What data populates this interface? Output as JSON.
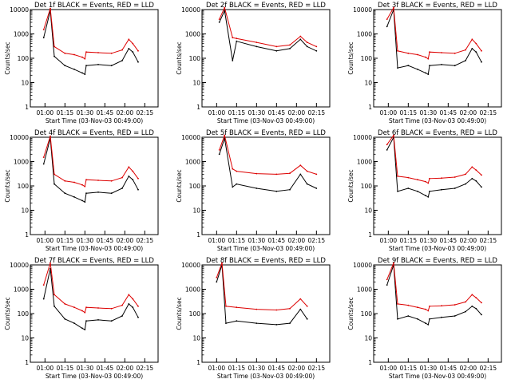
{
  "common": {
    "xlabel": "Start Time (03-Nov-03 00:49:00)",
    "ylabel": "Counts/sec",
    "x_ticks": [
      "01:00",
      "01:15",
      "01:30",
      "01:45",
      "02:00",
      "02:15"
    ],
    "y_ticks": [
      "1",
      "10",
      "100",
      "1000",
      "10000"
    ],
    "ylim": [
      1,
      10000
    ],
    "y_scale": "log",
    "events_color": "#000000",
    "lld_color": "#dd0000"
  },
  "chart_data": [
    {
      "type": "line",
      "title": "Det 1f BLACK = Events, RED = LLD",
      "series": [
        {
          "name": "Events",
          "x": [
            "00:59",
            "01:04",
            "01:07",
            "01:15",
            "01:22",
            "01:28",
            "01:30",
            "01:31",
            "01:40",
            "01:50",
            "01:58",
            "02:03",
            "02:06",
            "02:10"
          ],
          "values": [
            700,
            9000,
            120,
            50,
            35,
            25,
            22,
            50,
            55,
            50,
            80,
            250,
            180,
            70
          ]
        },
        {
          "name": "LLD",
          "x": [
            "00:59",
            "01:04",
            "01:07",
            "01:15",
            "01:22",
            "01:28",
            "01:30",
            "01:31",
            "01:40",
            "01:50",
            "01:58",
            "02:03",
            "02:06",
            "02:10"
          ],
          "values": [
            1500,
            11000,
            300,
            160,
            140,
            110,
            95,
            180,
            170,
            160,
            220,
            600,
            400,
            200
          ]
        }
      ]
    },
    {
      "type": "line",
      "title": "Det 2f BLACK = Events, RED = LLD",
      "series": [
        {
          "name": "Events",
          "x": [
            "01:02",
            "01:06",
            "01:12",
            "01:15",
            "01:30",
            "01:45",
            "01:55",
            "02:03",
            "02:08",
            "02:15"
          ],
          "values": [
            3000,
            9000,
            80,
            500,
            300,
            200,
            250,
            600,
            300,
            200
          ]
        },
        {
          "name": "LLD",
          "x": [
            "01:02",
            "01:06",
            "01:12",
            "01:15",
            "01:30",
            "01:45",
            "01:55",
            "02:03",
            "02:08",
            "02:15"
          ],
          "values": [
            4000,
            12000,
            700,
            650,
            450,
            300,
            350,
            800,
            450,
            300
          ]
        }
      ]
    },
    {
      "type": "line",
      "title": "Det 3f BLACK = Events, RED = LLD",
      "series": [
        {
          "name": "Events",
          "x": [
            "00:59",
            "01:04",
            "01:07",
            "01:15",
            "01:22",
            "01:28",
            "01:30",
            "01:31",
            "01:40",
            "01:50",
            "01:58",
            "02:03",
            "02:06",
            "02:10"
          ],
          "values": [
            2000,
            10000,
            40,
            50,
            35,
            25,
            22,
            50,
            55,
            50,
            80,
            250,
            180,
            70
          ]
        },
        {
          "name": "LLD",
          "x": [
            "00:59",
            "01:04",
            "01:07",
            "01:15",
            "01:22",
            "01:28",
            "01:30",
            "01:31",
            "01:40",
            "01:50",
            "01:58",
            "02:03",
            "02:06",
            "02:10"
          ],
          "values": [
            4000,
            12000,
            200,
            160,
            140,
            110,
            95,
            180,
            170,
            160,
            220,
            600,
            400,
            200
          ]
        }
      ]
    },
    {
      "type": "line",
      "title": "Det 4f BLACK = Events, RED = LLD",
      "series": [
        {
          "name": "Events",
          "x": [
            "00:59",
            "01:04",
            "01:07",
            "01:15",
            "01:22",
            "01:28",
            "01:30",
            "01:31",
            "01:40",
            "01:50",
            "01:58",
            "02:03",
            "02:06",
            "02:10"
          ],
          "values": [
            800,
            9000,
            120,
            50,
            35,
            25,
            22,
            50,
            55,
            50,
            80,
            250,
            180,
            70
          ]
        },
        {
          "name": "LLD",
          "x": [
            "00:59",
            "01:04",
            "01:07",
            "01:15",
            "01:22",
            "01:28",
            "01:30",
            "01:31",
            "01:40",
            "01:50",
            "01:58",
            "02:03",
            "02:06",
            "02:10"
          ],
          "values": [
            1500,
            11000,
            300,
            160,
            140,
            110,
            95,
            180,
            170,
            160,
            220,
            600,
            400,
            200
          ]
        }
      ]
    },
    {
      "type": "line",
      "title": "Det 5f BLACK = Events, RED = LLD",
      "series": [
        {
          "name": "Events",
          "x": [
            "01:02",
            "01:06",
            "01:12",
            "01:15",
            "01:30",
            "01:45",
            "01:55",
            "02:03",
            "02:08",
            "02:15"
          ],
          "values": [
            2000,
            9000,
            90,
            120,
            80,
            60,
            70,
            300,
            120,
            80
          ]
        },
        {
          "name": "LLD",
          "x": [
            "01:02",
            "01:06",
            "01:12",
            "01:15",
            "01:30",
            "01:45",
            "01:55",
            "02:03",
            "02:08",
            "02:15"
          ],
          "values": [
            3000,
            12000,
            500,
            400,
            320,
            300,
            330,
            700,
            400,
            300
          ]
        }
      ]
    },
    {
      "type": "line",
      "title": "Det 6f BLACK = Events, RED = LLD",
      "series": [
        {
          "name": "Events",
          "x": [
            "00:59",
            "01:04",
            "01:07",
            "01:15",
            "01:22",
            "01:28",
            "01:30",
            "01:31",
            "01:40",
            "01:50",
            "01:58",
            "02:03",
            "02:06",
            "02:10"
          ],
          "values": [
            3000,
            10000,
            60,
            80,
            60,
            40,
            35,
            60,
            70,
            80,
            120,
            200,
            160,
            90
          ]
        },
        {
          "name": "LLD",
          "x": [
            "00:59",
            "01:04",
            "01:07",
            "01:15",
            "01:22",
            "01:28",
            "01:30",
            "01:31",
            "01:40",
            "01:50",
            "01:58",
            "02:03",
            "02:06",
            "02:10"
          ],
          "values": [
            5000,
            12000,
            250,
            220,
            180,
            150,
            130,
            200,
            210,
            230,
            300,
            600,
            450,
            280
          ]
        }
      ]
    },
    {
      "type": "line",
      "title": "Det 7f BLACK = Events, RED = LLD",
      "series": [
        {
          "name": "Events",
          "x": [
            "00:59",
            "01:04",
            "01:07",
            "01:15",
            "01:22",
            "01:28",
            "01:30",
            "01:31",
            "01:40",
            "01:50",
            "01:58",
            "02:03",
            "02:06",
            "02:10"
          ],
          "values": [
            400,
            7000,
            200,
            60,
            40,
            25,
            22,
            50,
            55,
            50,
            80,
            250,
            180,
            70
          ]
        },
        {
          "name": "LLD",
          "x": [
            "00:59",
            "01:04",
            "01:07",
            "01:15",
            "01:22",
            "01:28",
            "01:30",
            "01:31",
            "01:40",
            "01:50",
            "01:58",
            "02:03",
            "02:06",
            "02:10"
          ],
          "values": [
            1500,
            12000,
            600,
            250,
            180,
            130,
            110,
            180,
            170,
            160,
            220,
            600,
            400,
            200
          ]
        }
      ]
    },
    {
      "type": "line",
      "title": "Det 8f BLACK = Events, RED = LLD",
      "series": [
        {
          "name": "Events",
          "x": [
            "01:00",
            "01:04",
            "01:07",
            "01:15",
            "01:30",
            "01:45",
            "01:55",
            "02:03",
            "02:08"
          ],
          "values": [
            2000,
            10000,
            40,
            50,
            40,
            35,
            40,
            150,
            60
          ]
        },
        {
          "name": "LLD",
          "x": [
            "01:00",
            "01:04",
            "01:07",
            "01:15",
            "01:30",
            "01:45",
            "01:55",
            "02:03",
            "02:08"
          ],
          "values": [
            3000,
            12000,
            200,
            180,
            150,
            140,
            160,
            400,
            200
          ]
        }
      ]
    },
    {
      "type": "line",
      "title": "Det 9f BLACK = Events, RED = LLD",
      "series": [
        {
          "name": "Events",
          "x": [
            "00:59",
            "01:04",
            "01:07",
            "01:15",
            "01:22",
            "01:28",
            "01:30",
            "01:31",
            "01:40",
            "01:50",
            "01:58",
            "02:03",
            "02:06",
            "02:10"
          ],
          "values": [
            1500,
            10000,
            60,
            80,
            60,
            40,
            35,
            60,
            70,
            80,
            120,
            200,
            160,
            90
          ]
        },
        {
          "name": "LLD",
          "x": [
            "00:59",
            "01:04",
            "01:07",
            "01:15",
            "01:22",
            "01:28",
            "01:30",
            "01:31",
            "01:40",
            "01:50",
            "01:58",
            "02:03",
            "02:06",
            "02:10"
          ],
          "values": [
            2500,
            12000,
            250,
            220,
            180,
            150,
            130,
            200,
            210,
            230,
            300,
            600,
            450,
            280
          ]
        }
      ]
    }
  ]
}
